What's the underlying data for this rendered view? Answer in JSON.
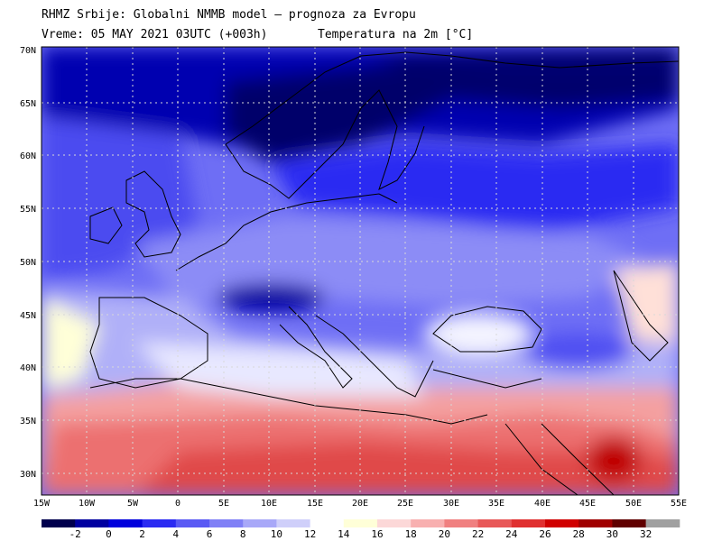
{
  "header": {
    "line1": "RHMZ Srbije: Globalni NMMB model — prognoza za Evropu",
    "line2": "Vreme: 05 MAY 2021 03UTC (+003h)",
    "line2_right": "Temperatura na 2m [°C]"
  },
  "map": {
    "lat_labels": [
      "70N",
      "65N",
      "60N",
      "55N",
      "50N",
      "45N",
      "40N",
      "35N",
      "30N"
    ],
    "lon_labels": [
      "15W",
      "10W",
      "5W",
      "0",
      "5E",
      "10E",
      "15E",
      "20E",
      "25E",
      "30E",
      "35E",
      "40E",
      "45E",
      "50E",
      "55E"
    ]
  },
  "colorbar": {
    "colors": [
      "#00004d",
      "#0000a0",
      "#0000dc",
      "#2b2bf2",
      "#5a5af4",
      "#8080f6",
      "#a8a8f8",
      "#cfcffa",
      "#ffffff",
      "#ffffd8",
      "#fcd8d8",
      "#f8b0b0",
      "#f08080",
      "#e85858",
      "#e03030",
      "#d00000",
      "#a00000",
      "#600000",
      "#a0a0a0"
    ],
    "ticks": [
      "-2",
      "0",
      "2",
      "4",
      "6",
      "8",
      "10",
      "12",
      "14",
      "16",
      "18",
      "20",
      "22",
      "24",
      "26",
      "28",
      "30",
      "32"
    ]
  }
}
